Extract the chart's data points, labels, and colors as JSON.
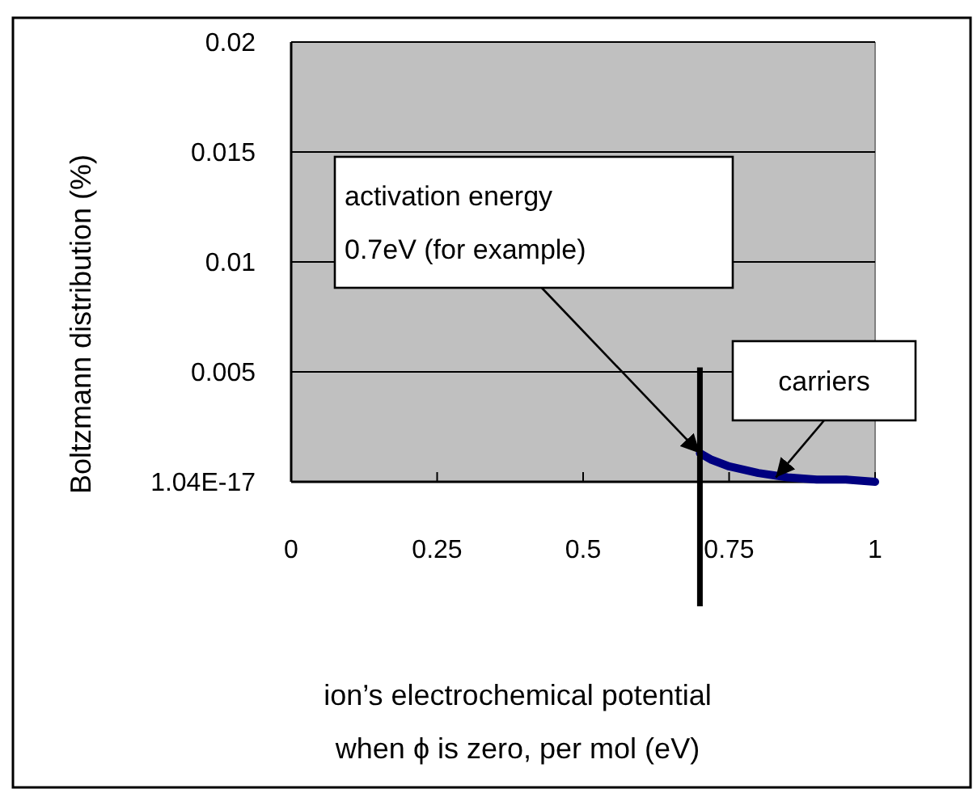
{
  "chart_data": {
    "type": "line",
    "xlabel": "ion’s electrochemical potential\nwhen ϕ is zero, per mol (eV)",
    "ylabel": "Boltzmann distribution (%)",
    "x": [
      0.7,
      0.72,
      0.75,
      0.8,
      0.85,
      0.9,
      0.95,
      1
    ],
    "series": [
      {
        "color": "#000080",
        "values": [
          0.0013,
          0.001,
          0.0007,
          0.0004,
          0.0002,
          0.0001,
          0.0001,
          0
        ]
      }
    ],
    "xlim": [
      0,
      1
    ],
    "xticks": [
      0,
      0.25,
      0.5,
      0.75,
      1
    ],
    "ylim": [
      0,
      0.02
    ],
    "yticks": [
      {
        "value": 0,
        "label": "1.04E-17"
      },
      0.005,
      0.01,
      0.015,
      0.02
    ],
    "grid": "y",
    "marker": "none",
    "line_style": "solid",
    "ref_lines": [
      {
        "axis": "x",
        "value": 0.7,
        "color": "#000000"
      }
    ],
    "annotations": [
      {
        "text": "activation energy\n0.7eV (for example)",
        "x": 0.7,
        "y": 0.0013
      },
      {
        "text": "carriers",
        "x": 0.83,
        "y": 0.0002
      }
    ]
  }
}
